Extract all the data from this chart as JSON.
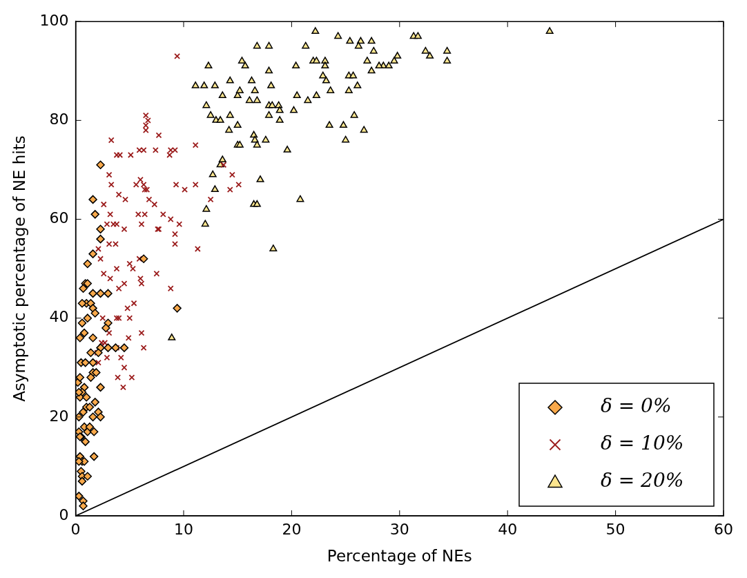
{
  "chart_data": {
    "type": "scatter",
    "xlabel": "Percentage of NEs",
    "ylabel": "Asymptotic percentage of NE hits",
    "xlim": [
      0,
      60
    ],
    "ylim": [
      0,
      100
    ],
    "xticks": [
      0,
      10,
      20,
      30,
      40,
      50,
      60
    ],
    "yticks": [
      0,
      20,
      40,
      60,
      80,
      100
    ],
    "grid": false,
    "legend": "bottom right",
    "series": [
      {
        "name": "δ = 0%",
        "marker": "diamond",
        "color": "#f9a94b",
        "x": [
          2.3,
          1.6,
          1.8,
          2.3,
          2.3,
          1.6,
          1.1,
          6.3,
          0.9,
          0.7,
          1.1,
          1.0,
          0.6,
          1.4,
          1.6,
          1.8,
          1.1,
          0.6,
          1.6,
          2.3,
          3.0,
          9.4,
          0.4,
          0.8,
          1.6,
          3.0,
          2.8,
          1.4,
          2.3,
          3.0,
          3.7,
          4.5,
          2.1,
          1.6,
          1.9,
          1.4,
          0.5,
          0.9,
          1.6,
          0.2,
          0.4,
          0.8,
          0.6,
          0.4,
          1.0,
          2.3,
          0.3,
          0.7,
          1.0,
          1.3,
          1.8,
          2.1,
          2.3,
          1.6,
          0.8,
          1.1,
          1.3,
          0.5,
          0.3,
          1.7,
          0.4,
          0.6,
          0.8,
          0.5,
          0.6,
          1.1,
          1.7,
          0.3,
          0.7,
          0.7,
          0.6,
          0.3,
          0.3,
          0.4,
          0.9
        ],
        "values": [
          71,
          64,
          61,
          58,
          56,
          53,
          51,
          52,
          47,
          46,
          47,
          43,
          43,
          43,
          42,
          41,
          40,
          39,
          45,
          45,
          45,
          42,
          36,
          37,
          36,
          39,
          38,
          33,
          34,
          34,
          34,
          34,
          33,
          29,
          29,
          28,
          31,
          31,
          31,
          27,
          28,
          26,
          25,
          24,
          24,
          26,
          20,
          21,
          22,
          22,
          23,
          21,
          20,
          20,
          18,
          17,
          18,
          16,
          17,
          17,
          12,
          11,
          11,
          9,
          8,
          8,
          12,
          4,
          3,
          2,
          7,
          25,
          11,
          16,
          15
        ]
      },
      {
        "name": "δ = 10%",
        "marker": "cross",
        "color": "#9b1c1c",
        "x": [
          9.4,
          6.5,
          6.7,
          6.5,
          6.5,
          7.7,
          3.3,
          11.1,
          5.9,
          6.3,
          7.4,
          8.8,
          4.1,
          5.1,
          3.8,
          9.2,
          3.1,
          8.7,
          6.0,
          6.3,
          6.6,
          3.3,
          5.6,
          9.3,
          10.1,
          11.1,
          13.7,
          14.5,
          12.5,
          14.3,
          15.1,
          4.0,
          4.6,
          6.8,
          6.4,
          2.6,
          7.3,
          5.8,
          6.4,
          3.2,
          3.5,
          3.8,
          6.1,
          8.1,
          8.8,
          9.6,
          7.7,
          7.6,
          2.9,
          9.2,
          9.2,
          11.3,
          3.1,
          3.7,
          4.5,
          2.1,
          2.3,
          2.6,
          3.2,
          4.0,
          4.5,
          3.8,
          5.0,
          5.3,
          5.9,
          6.0,
          6.1,
          8.8,
          7.5,
          3.8,
          4.0,
          4.8,
          5.4,
          5.0,
          4.9,
          6.1,
          6.3,
          2.0,
          2.9,
          2.1,
          3.8,
          4.2,
          4.5,
          3.9,
          4.4,
          5.2,
          2.4,
          3.1,
          2.7,
          2.5
        ],
        "values": [
          93,
          81,
          80,
          79,
          78,
          77,
          76,
          75,
          74,
          74,
          74,
          74,
          73,
          73,
          73,
          74,
          69,
          73,
          68,
          67,
          66,
          67,
          67,
          67,
          66,
          67,
          71,
          69,
          64,
          66,
          67,
          65,
          64,
          64,
          66,
          63,
          63,
          61,
          61,
          61,
          59,
          59,
          59,
          61,
          60,
          59,
          58,
          58,
          59,
          57,
          55,
          54,
          55,
          55,
          58,
          54,
          52,
          49,
          48,
          46,
          47,
          50,
          51,
          50,
          52,
          48,
          47,
          46,
          49,
          40,
          40,
          42,
          43,
          40,
          36,
          37,
          34,
          33,
          32,
          31,
          34,
          32,
          30,
          28,
          26,
          28,
          35,
          37,
          35,
          40
        ]
      },
      {
        "name": "δ = 20%",
        "marker": "triangle",
        "color": "#fde68f",
        "x": [
          43.9,
          22.2,
          24.3,
          31.3,
          31.7,
          25.4,
          26.4,
          27.4,
          26.2,
          16.8,
          17.9,
          21.3,
          22.0,
          22.3,
          23.1,
          27.6,
          32.4,
          32.8,
          34.4,
          34.4,
          29.8,
          28.5,
          29.0,
          29.5,
          12.3,
          15.4,
          15.7,
          20.4,
          23.1,
          27.0,
          28.1,
          11.1,
          11.9,
          12.9,
          14.3,
          16.3,
          17.9,
          18.1,
          22.9,
          23.2,
          25.3,
          25.7,
          27.4,
          26.1,
          25.3,
          23.6,
          22.3,
          20.5,
          21.5,
          12.1,
          13.6,
          15.0,
          15.2,
          16.1,
          16.6,
          16.8,
          17.9,
          18.2,
          18.8,
          18.9,
          20.2,
          12.5,
          13.0,
          13.4,
          14.3,
          15.0,
          14.2,
          16.5,
          16.6,
          16.8,
          17.6,
          17.9,
          18.9,
          15.0,
          15.2,
          19.6,
          23.5,
          24.8,
          25.8,
          26.7,
          25.0,
          13.4,
          13.6,
          12.7,
          12.9,
          17.1,
          12.1,
          12.0,
          16.5,
          16.8,
          20.8,
          18.3,
          8.9
        ],
        "values": [
          98,
          98,
          97,
          97,
          97,
          96,
          96,
          96,
          95,
          95,
          95,
          95,
          92,
          92,
          92,
          94,
          94,
          93,
          94,
          92,
          93,
          91,
          91,
          92,
          91,
          92,
          91,
          91,
          91,
          92,
          91,
          87,
          87,
          87,
          88,
          88,
          90,
          87,
          89,
          88,
          89,
          89,
          90,
          87,
          86,
          86,
          85,
          85,
          84,
          83,
          85,
          85,
          86,
          84,
          86,
          84,
          83,
          83,
          83,
          82,
          82,
          81,
          80,
          80,
          81,
          79,
          78,
          77,
          76,
          75,
          76,
          81,
          80,
          75,
          75,
          74,
          79,
          79,
          81,
          78,
          76,
          71,
          72,
          69,
          66,
          68,
          62,
          59,
          63,
          63,
          64,
          54,
          36
        ]
      },
      {
        "type": "line",
        "color": "#000000",
        "marker": "none",
        "line_style": "solid",
        "x": [
          0,
          60
        ],
        "values": [
          0,
          60
        ]
      }
    ]
  }
}
